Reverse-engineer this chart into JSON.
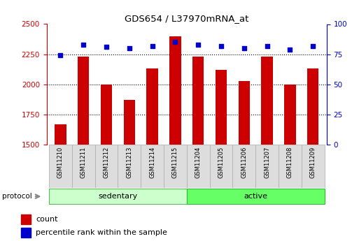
{
  "title": "GDS654 / L37970mRNA_at",
  "samples": [
    "GSM11210",
    "GSM11211",
    "GSM11212",
    "GSM11213",
    "GSM11214",
    "GSM11215",
    "GSM11204",
    "GSM11205",
    "GSM11206",
    "GSM11207",
    "GSM11208",
    "GSM11209"
  ],
  "counts": [
    1670,
    2230,
    2000,
    1870,
    2130,
    2400,
    2230,
    2120,
    2030,
    2230,
    2000,
    2130
  ],
  "percentiles": [
    74,
    83,
    81,
    80,
    82,
    85,
    83,
    82,
    80,
    82,
    79,
    82
  ],
  "bar_color": "#cc0000",
  "dot_color": "#0000cc",
  "ylim_left": [
    1500,
    2500
  ],
  "ylim_right": [
    0,
    100
  ],
  "yticks_left": [
    1500,
    1750,
    2000,
    2250,
    2500
  ],
  "yticks_right": [
    0,
    25,
    50,
    75,
    100
  ],
  "grid_values": [
    1750,
    2000,
    2250
  ],
  "sedentary_color": "#ccffcc",
  "active_color": "#66ff66",
  "protocol_label": "protocol",
  "sedentary_label": "sedentary",
  "active_label": "active",
  "legend_count": "count",
  "legend_percentile": "percentile rank within the sample",
  "bar_width": 0.5,
  "n_sedentary": 6,
  "n_active": 6
}
